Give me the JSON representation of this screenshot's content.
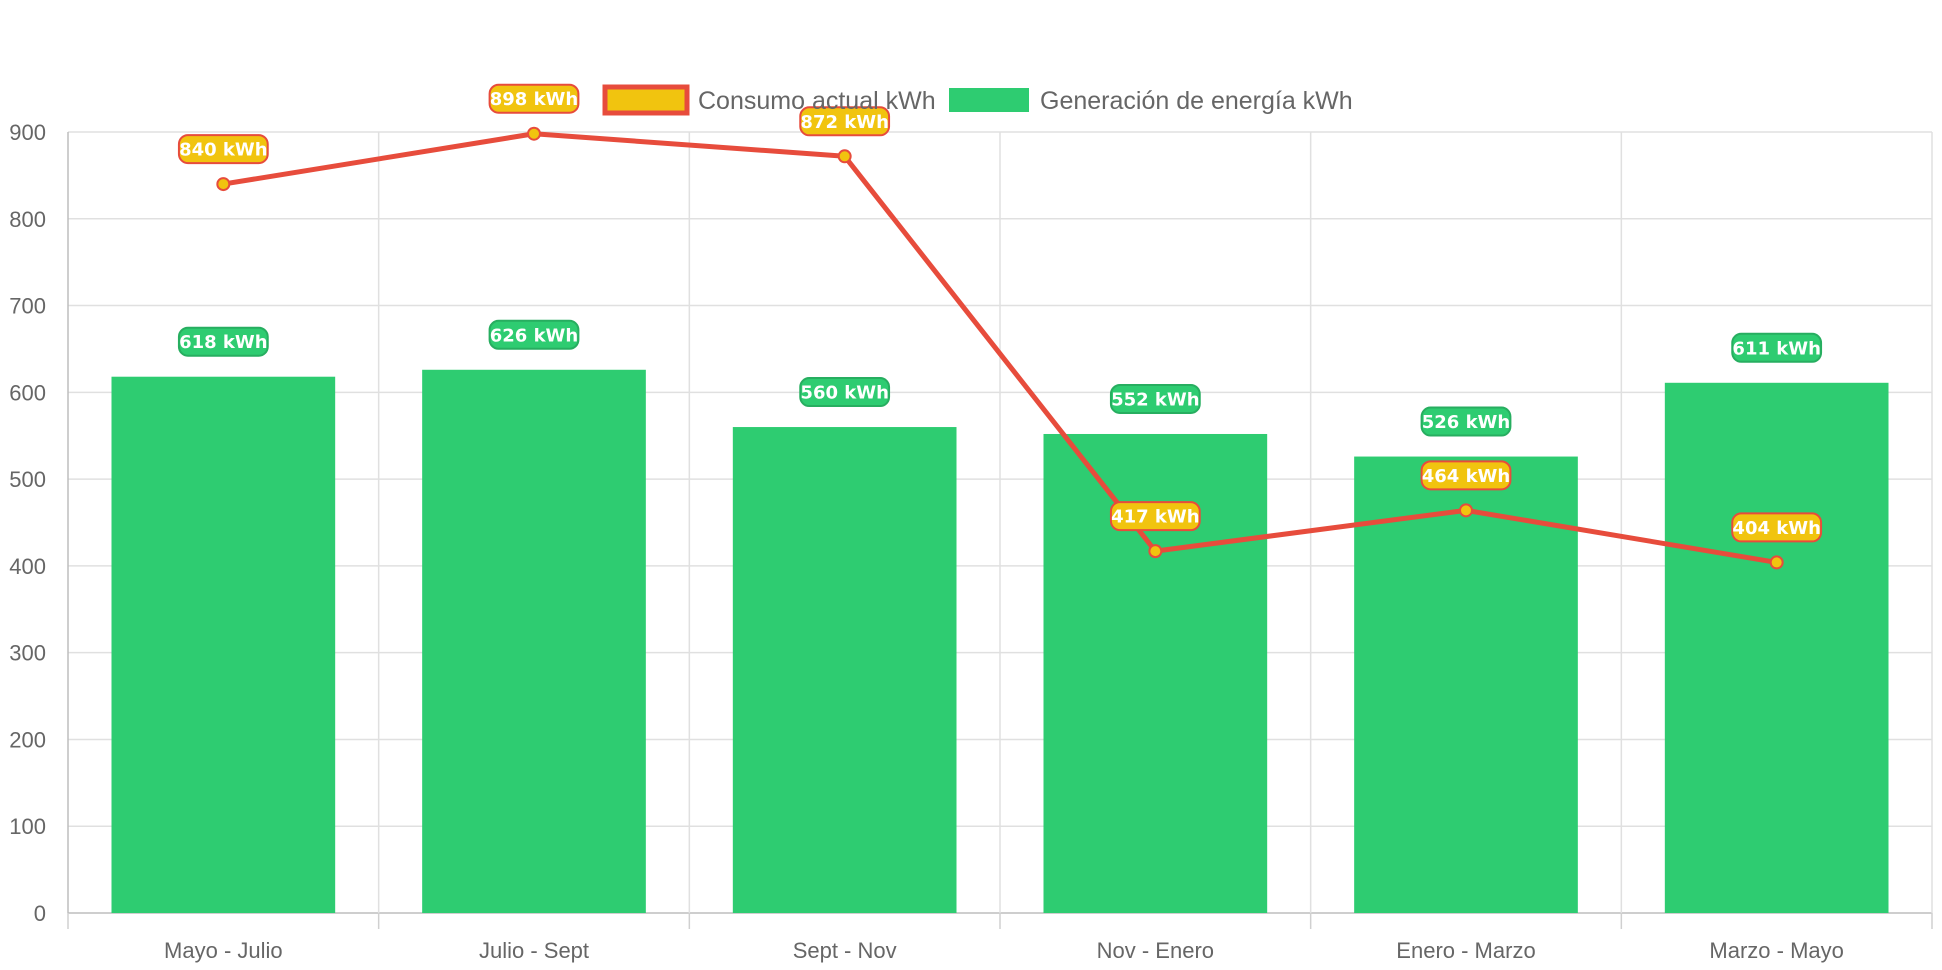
{
  "chart_data": {
    "type": "bar",
    "categories": [
      "Mayo - Julio",
      "Julio - Sept",
      "Sept - Nov",
      "Nov - Enero",
      "Enero - Marzo",
      "Marzo - Mayo"
    ],
    "ylim": [
      0,
      900
    ],
    "yticks": [
      0,
      100,
      200,
      300,
      400,
      500,
      600,
      700,
      800,
      900
    ],
    "grid": true,
    "legend_position": "top",
    "series": [
      {
        "name": "Consumo actual kWh",
        "type": "line",
        "values": [
          840,
          898,
          872,
          417,
          464,
          404
        ],
        "labels": [
          "840 kWh",
          "898 kWh",
          "872 kWh",
          "417 kWh",
          "464 kWh",
          "404 kWh"
        ],
        "color": "#e74c3c",
        "fill_color": "#f1c40f"
      },
      {
        "name": "Generación de energía kWh",
        "type": "bar",
        "values": [
          618,
          626,
          560,
          552,
          526,
          611
        ],
        "labels": [
          "618 kWh",
          "626 kWh",
          "560 kWh",
          "552 kWh",
          "526 kWh",
          "611 kWh"
        ],
        "color": "#2ecc71",
        "border_color": "#27ae60"
      }
    ]
  }
}
